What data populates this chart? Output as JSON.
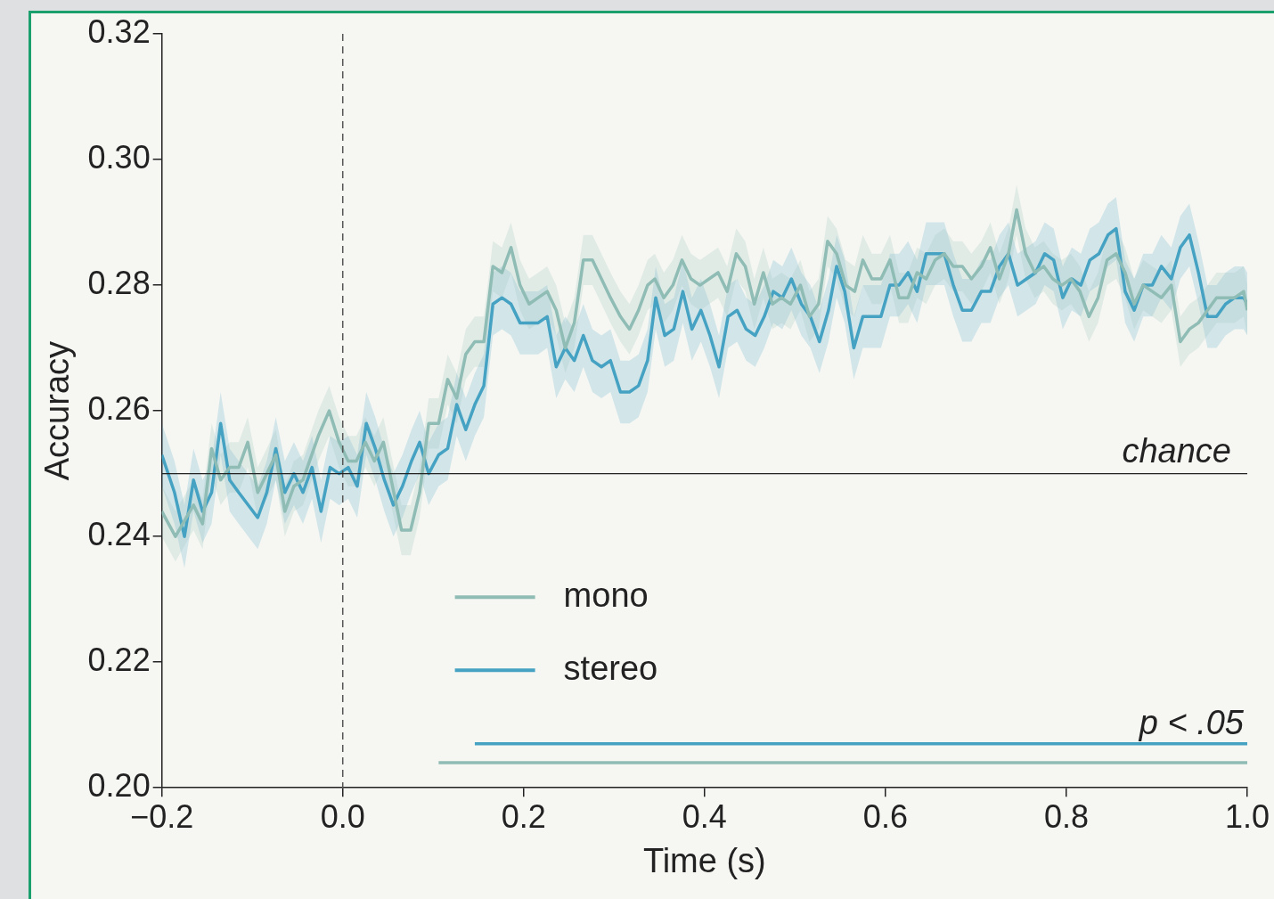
{
  "chart_data": {
    "type": "line",
    "xlabel": "Time (s)",
    "ylabel": "Accuracy",
    "xlim": [
      -0.2,
      1.0
    ],
    "xticks": [
      {
        "value": -0.2,
        "label": "−0.2"
      },
      {
        "value": 0,
        "label": "0.0"
      },
      {
        "value": 0.2,
        "label": "0.2"
      },
      {
        "value": 0.4,
        "label": "0.4"
      },
      {
        "value": 0.6,
        "label": "0.6"
      },
      {
        "value": 0.8,
        "label": "0.8"
      },
      {
        "value": 1.0,
        "label": "1.0"
      }
    ],
    "ylim": [
      0.2,
      0.32
    ],
    "yticks": [
      {
        "value": 0.2,
        "label": "0.20"
      },
      {
        "value": 0.22,
        "label": "0.22"
      },
      {
        "value": 0.24,
        "label": "0.24"
      },
      {
        "value": 0.26,
        "label": "0.26"
      },
      {
        "value": 0.28,
        "label": "0.28"
      },
      {
        "value": 0.3,
        "label": "0.30"
      },
      {
        "value": 0.32,
        "label": "0.32"
      }
    ],
    "grid": false,
    "legend": "bottom",
    "marker": "none",
    "line_style": "solid",
    "ref_lines": [
      {
        "axis": "x",
        "value": 0,
        "line_style": "dashed",
        "color": "#555555"
      },
      {
        "axis": "y",
        "value": 0.25,
        "label": "chance",
        "color": "#222222",
        "line_style": "solid"
      }
    ],
    "annotations": [
      "p < .05"
    ],
    "series": [
      {
        "name": "mono",
        "color": "#8fbcb4",
        "x": [
          -0.2,
          -0.185,
          -0.165,
          -0.155,
          -0.145,
          -0.135,
          -0.125,
          -0.115,
          -0.105,
          -0.094,
          -0.074,
          -0.064,
          -0.054,
          -0.044,
          -0.027,
          -0.015,
          -0.004,
          0.006,
          0.015,
          0.025,
          0.035,
          0.045,
          0.055,
          0.065,
          0.075,
          0.085,
          0.095,
          0.106,
          0.116,
          0.126,
          0.136,
          0.146,
          0.156,
          0.166,
          0.176,
          0.186,
          0.196,
          0.206,
          0.216,
          0.226,
          0.236,
          0.246,
          0.256,
          0.266,
          0.276,
          0.286,
          0.296,
          0.307,
          0.317,
          0.327,
          0.337,
          0.345,
          0.355,
          0.365,
          0.375,
          0.385,
          0.395,
          0.405,
          0.415,
          0.425,
          0.435,
          0.445,
          0.455,
          0.465,
          0.475,
          0.485,
          0.495,
          0.506,
          0.516,
          0.526,
          0.536,
          0.546,
          0.556,
          0.566,
          0.575,
          0.585,
          0.595,
          0.605,
          0.615,
          0.625,
          0.635,
          0.645,
          0.655,
          0.665,
          0.675,
          0.685,
          0.695,
          0.706,
          0.716,
          0.726,
          0.736,
          0.745,
          0.755,
          0.765,
          0.775,
          0.785,
          0.795,
          0.805,
          0.815,
          0.825,
          0.835,
          0.845,
          0.855,
          0.865,
          0.875,
          0.885,
          0.895,
          0.905,
          0.916,
          0.926,
          0.936,
          0.946,
          0.956,
          0.966,
          0.976,
          0.986,
          0.996,
          1.0
        ],
        "values": [
          0.244,
          0.24,
          0.245,
          0.242,
          0.254,
          0.249,
          0.251,
          0.251,
          0.255,
          0.247,
          0.253,
          0.244,
          0.248,
          0.249,
          0.256,
          0.26,
          0.255,
          0.252,
          0.252,
          0.255,
          0.252,
          0.255,
          0.248,
          0.241,
          0.241,
          0.247,
          0.258,
          0.258,
          0.265,
          0.262,
          0.269,
          0.271,
          0.271,
          0.283,
          0.282,
          0.286,
          0.28,
          0.277,
          0.278,
          0.279,
          0.276,
          0.27,
          0.274,
          0.284,
          0.284,
          0.281,
          0.278,
          0.275,
          0.273,
          0.276,
          0.28,
          0.281,
          0.278,
          0.28,
          0.284,
          0.281,
          0.28,
          0.281,
          0.282,
          0.279,
          0.285,
          0.283,
          0.277,
          0.282,
          0.277,
          0.278,
          0.277,
          0.28,
          0.275,
          0.277,
          0.287,
          0.285,
          0.28,
          0.279,
          0.284,
          0.281,
          0.281,
          0.284,
          0.278,
          0.278,
          0.282,
          0.281,
          0.284,
          0.285,
          0.283,
          0.283,
          0.281,
          0.283,
          0.286,
          0.281,
          0.285,
          0.292,
          0.285,
          0.282,
          0.283,
          0.281,
          0.28,
          0.281,
          0.279,
          0.275,
          0.278,
          0.284,
          0.285,
          0.282,
          0.277,
          0.28,
          0.279,
          0.278,
          0.28,
          0.271,
          0.273,
          0.274,
          0.276,
          0.278,
          0.278,
          0.278,
          0.279,
          0.276
        ],
        "lower": [
          0.24,
          0.236,
          0.241,
          0.238,
          0.25,
          0.245,
          0.247,
          0.247,
          0.251,
          0.243,
          0.249,
          0.24,
          0.244,
          0.245,
          0.252,
          0.256,
          0.251,
          0.248,
          0.248,
          0.251,
          0.248,
          0.251,
          0.244,
          0.237,
          0.237,
          0.243,
          0.254,
          0.254,
          0.261,
          0.258,
          0.265,
          0.267,
          0.267,
          0.279,
          0.278,
          0.282,
          0.276,
          0.273,
          0.274,
          0.275,
          0.272,
          0.266,
          0.27,
          0.28,
          0.28,
          0.277,
          0.274,
          0.271,
          0.269,
          0.272,
          0.276,
          0.277,
          0.274,
          0.276,
          0.28,
          0.277,
          0.276,
          0.277,
          0.278,
          0.275,
          0.281,
          0.279,
          0.273,
          0.278,
          0.273,
          0.274,
          0.273,
          0.276,
          0.271,
          0.273,
          0.283,
          0.281,
          0.276,
          0.275,
          0.28,
          0.277,
          0.277,
          0.28,
          0.274,
          0.274,
          0.278,
          0.277,
          0.28,
          0.281,
          0.279,
          0.279,
          0.277,
          0.279,
          0.282,
          0.277,
          0.281,
          0.288,
          0.281,
          0.278,
          0.279,
          0.277,
          0.276,
          0.277,
          0.275,
          0.271,
          0.274,
          0.28,
          0.281,
          0.278,
          0.273,
          0.276,
          0.275,
          0.274,
          0.276,
          0.267,
          0.269,
          0.27,
          0.272,
          0.274,
          0.274,
          0.274,
          0.275,
          0.272
        ],
        "upper": [
          0.248,
          0.244,
          0.249,
          0.246,
          0.258,
          0.253,
          0.255,
          0.255,
          0.259,
          0.251,
          0.257,
          0.248,
          0.252,
          0.253,
          0.26,
          0.264,
          0.259,
          0.256,
          0.256,
          0.259,
          0.256,
          0.259,
          0.252,
          0.245,
          0.245,
          0.251,
          0.262,
          0.262,
          0.269,
          0.266,
          0.273,
          0.275,
          0.275,
          0.287,
          0.286,
          0.29,
          0.284,
          0.281,
          0.282,
          0.283,
          0.28,
          0.274,
          0.278,
          0.288,
          0.288,
          0.285,
          0.282,
          0.279,
          0.277,
          0.28,
          0.284,
          0.285,
          0.282,
          0.284,
          0.288,
          0.285,
          0.284,
          0.285,
          0.286,
          0.283,
          0.289,
          0.287,
          0.281,
          0.286,
          0.281,
          0.282,
          0.281,
          0.284,
          0.279,
          0.281,
          0.291,
          0.289,
          0.284,
          0.283,
          0.288,
          0.285,
          0.285,
          0.288,
          0.282,
          0.282,
          0.286,
          0.285,
          0.288,
          0.289,
          0.287,
          0.287,
          0.285,
          0.287,
          0.29,
          0.285,
          0.289,
          0.296,
          0.289,
          0.286,
          0.287,
          0.285,
          0.284,
          0.285,
          0.283,
          0.279,
          0.282,
          0.288,
          0.289,
          0.286,
          0.281,
          0.284,
          0.283,
          0.282,
          0.284,
          0.275,
          0.277,
          0.278,
          0.28,
          0.282,
          0.282,
          0.282,
          0.283,
          0.28
        ]
      },
      {
        "name": "stereo",
        "color": "#45a2c2",
        "x": [
          -0.2,
          -0.186,
          -0.175,
          -0.165,
          -0.155,
          -0.145,
          -0.135,
          -0.125,
          -0.115,
          -0.094,
          -0.084,
          -0.074,
          -0.064,
          -0.054,
          -0.044,
          -0.034,
          -0.024,
          -0.014,
          -0.004,
          0.006,
          0.016,
          0.026,
          0.036,
          0.046,
          0.056,
          0.066,
          0.076,
          0.085,
          0.095,
          0.106,
          0.116,
          0.126,
          0.136,
          0.146,
          0.156,
          0.166,
          0.176,
          0.186,
          0.196,
          0.206,
          0.216,
          0.226,
          0.236,
          0.246,
          0.256,
          0.266,
          0.276,
          0.286,
          0.296,
          0.307,
          0.317,
          0.327,
          0.337,
          0.346,
          0.356,
          0.366,
          0.376,
          0.386,
          0.396,
          0.406,
          0.416,
          0.426,
          0.436,
          0.446,
          0.456,
          0.466,
          0.476,
          0.486,
          0.496,
          0.507,
          0.517,
          0.527,
          0.537,
          0.546,
          0.555,
          0.565,
          0.575,
          0.585,
          0.595,
          0.605,
          0.615,
          0.625,
          0.635,
          0.645,
          0.655,
          0.665,
          0.675,
          0.685,
          0.695,
          0.706,
          0.716,
          0.726,
          0.736,
          0.746,
          0.756,
          0.766,
          0.776,
          0.786,
          0.796,
          0.806,
          0.816,
          0.826,
          0.836,
          0.846,
          0.855,
          0.865,
          0.875,
          0.885,
          0.895,
          0.905,
          0.916,
          0.926,
          0.936,
          0.946,
          0.956,
          0.966,
          0.976,
          0.986,
          0.996,
          1.0
        ],
        "values": [
          0.253,
          0.247,
          0.24,
          0.249,
          0.244,
          0.247,
          0.258,
          0.249,
          0.247,
          0.243,
          0.247,
          0.254,
          0.247,
          0.25,
          0.247,
          0.251,
          0.244,
          0.251,
          0.25,
          0.251,
          0.248,
          0.258,
          0.254,
          0.249,
          0.245,
          0.248,
          0.252,
          0.255,
          0.25,
          0.253,
          0.254,
          0.261,
          0.257,
          0.261,
          0.264,
          0.277,
          0.278,
          0.277,
          0.274,
          0.274,
          0.274,
          0.275,
          0.267,
          0.27,
          0.268,
          0.272,
          0.268,
          0.267,
          0.268,
          0.263,
          0.263,
          0.264,
          0.268,
          0.278,
          0.272,
          0.273,
          0.279,
          0.273,
          0.276,
          0.272,
          0.267,
          0.275,
          0.276,
          0.273,
          0.272,
          0.275,
          0.279,
          0.278,
          0.281,
          0.277,
          0.275,
          0.271,
          0.276,
          0.283,
          0.279,
          0.27,
          0.275,
          0.275,
          0.275,
          0.28,
          0.28,
          0.282,
          0.279,
          0.285,
          0.285,
          0.285,
          0.28,
          0.276,
          0.276,
          0.279,
          0.279,
          0.283,
          0.285,
          0.28,
          0.281,
          0.282,
          0.285,
          0.284,
          0.278,
          0.281,
          0.28,
          0.284,
          0.285,
          0.288,
          0.289,
          0.279,
          0.276,
          0.28,
          0.28,
          0.283,
          0.281,
          0.286,
          0.288,
          0.282,
          0.275,
          0.275,
          0.277,
          0.278,
          0.278,
          0.277
        ],
        "lower": [
          0.248,
          0.242,
          0.235,
          0.244,
          0.239,
          0.242,
          0.253,
          0.244,
          0.242,
          0.238,
          0.242,
          0.249,
          0.242,
          0.245,
          0.242,
          0.246,
          0.239,
          0.246,
          0.245,
          0.246,
          0.243,
          0.253,
          0.249,
          0.244,
          0.24,
          0.243,
          0.247,
          0.25,
          0.245,
          0.248,
          0.249,
          0.256,
          0.252,
          0.256,
          0.259,
          0.272,
          0.273,
          0.272,
          0.269,
          0.269,
          0.269,
          0.27,
          0.262,
          0.265,
          0.263,
          0.267,
          0.263,
          0.262,
          0.263,
          0.258,
          0.258,
          0.259,
          0.263,
          0.273,
          0.267,
          0.268,
          0.274,
          0.268,
          0.271,
          0.267,
          0.262,
          0.27,
          0.271,
          0.268,
          0.267,
          0.27,
          0.274,
          0.273,
          0.276,
          0.272,
          0.27,
          0.266,
          0.271,
          0.278,
          0.274,
          0.265,
          0.27,
          0.27,
          0.27,
          0.275,
          0.275,
          0.277,
          0.274,
          0.28,
          0.28,
          0.28,
          0.275,
          0.271,
          0.271,
          0.274,
          0.274,
          0.278,
          0.28,
          0.275,
          0.276,
          0.277,
          0.28,
          0.279,
          0.273,
          0.276,
          0.275,
          0.279,
          0.28,
          0.283,
          0.284,
          0.274,
          0.271,
          0.275,
          0.275,
          0.278,
          0.276,
          0.281,
          0.283,
          0.277,
          0.27,
          0.27,
          0.272,
          0.273,
          0.273,
          0.272
        ],
        "upper": [
          0.258,
          0.252,
          0.245,
          0.254,
          0.249,
          0.252,
          0.263,
          0.254,
          0.252,
          0.248,
          0.252,
          0.259,
          0.252,
          0.255,
          0.252,
          0.256,
          0.249,
          0.256,
          0.255,
          0.256,
          0.253,
          0.263,
          0.259,
          0.254,
          0.25,
          0.253,
          0.257,
          0.26,
          0.255,
          0.258,
          0.259,
          0.266,
          0.262,
          0.266,
          0.269,
          0.282,
          0.283,
          0.282,
          0.279,
          0.279,
          0.279,
          0.28,
          0.272,
          0.275,
          0.273,
          0.277,
          0.273,
          0.272,
          0.273,
          0.268,
          0.268,
          0.269,
          0.273,
          0.283,
          0.277,
          0.278,
          0.284,
          0.278,
          0.281,
          0.277,
          0.272,
          0.28,
          0.281,
          0.278,
          0.277,
          0.28,
          0.284,
          0.283,
          0.286,
          0.282,
          0.28,
          0.276,
          0.281,
          0.288,
          0.284,
          0.275,
          0.28,
          0.28,
          0.28,
          0.285,
          0.285,
          0.287,
          0.284,
          0.29,
          0.29,
          0.29,
          0.285,
          0.281,
          0.281,
          0.284,
          0.284,
          0.288,
          0.29,
          0.285,
          0.286,
          0.287,
          0.29,
          0.289,
          0.283,
          0.286,
          0.285,
          0.289,
          0.29,
          0.293,
          0.294,
          0.284,
          0.281,
          0.285,
          0.285,
          0.288,
          0.286,
          0.291,
          0.293,
          0.287,
          0.28,
          0.28,
          0.282,
          0.283,
          0.283,
          0.282
        ]
      },
      {
        "type": "line",
        "color": "#45a2c2",
        "x": [
          0.146,
          1.0
        ],
        "values": [
          0.207,
          0.207
        ]
      },
      {
        "type": "line",
        "color": "#8fbcb4",
        "x": [
          0.106,
          1.0
        ],
        "values": [
          0.204,
          0.204
        ]
      }
    ]
  }
}
